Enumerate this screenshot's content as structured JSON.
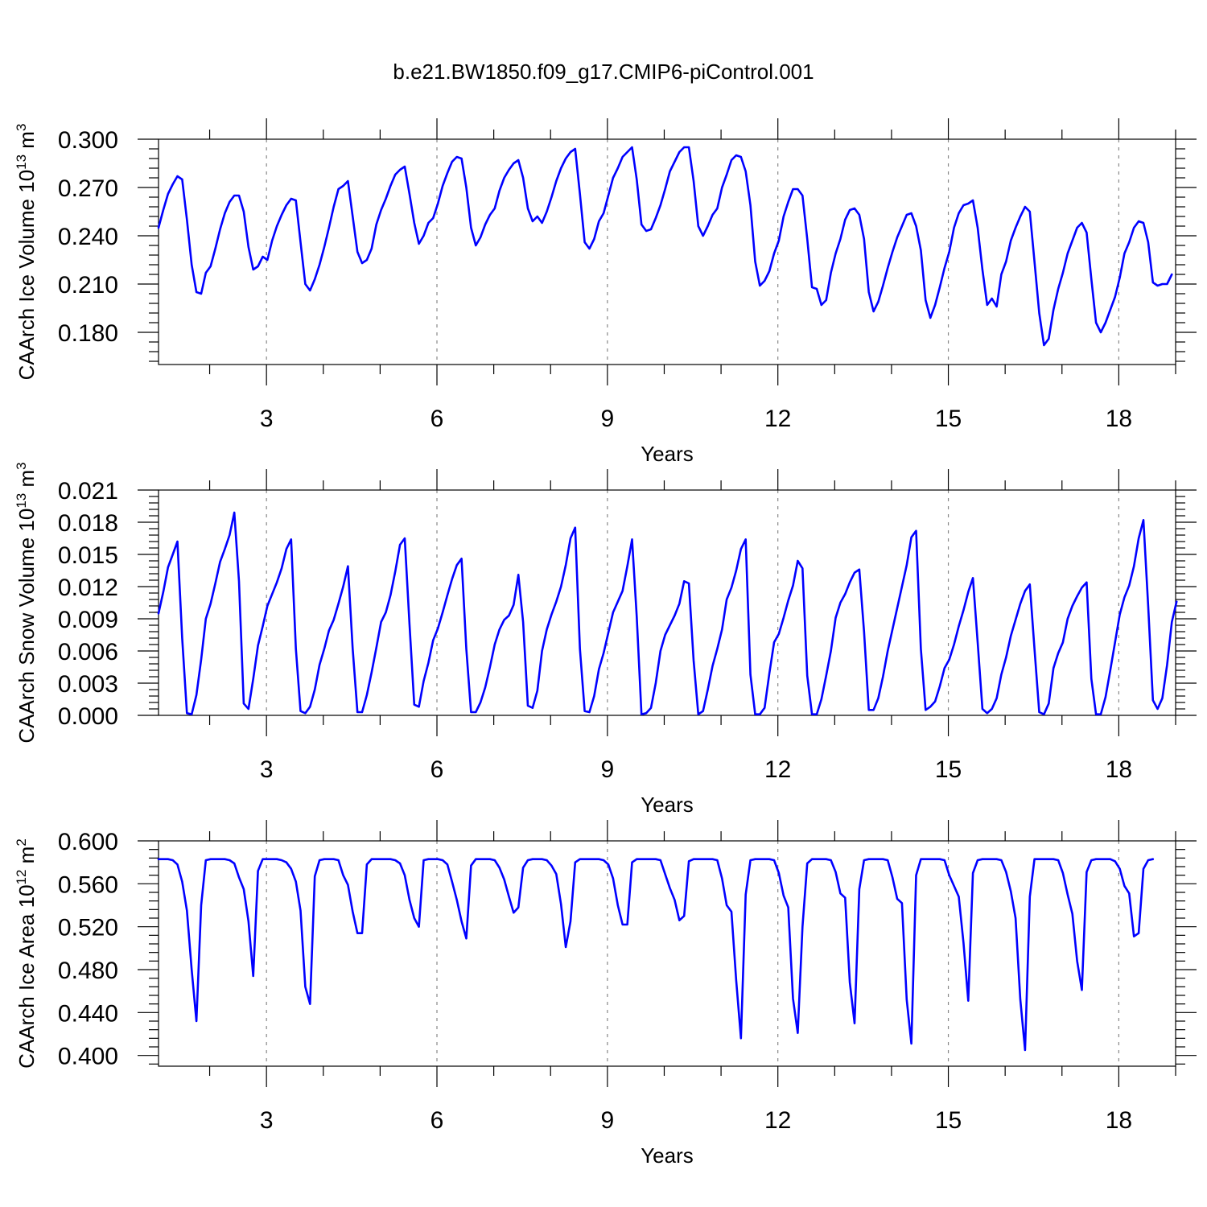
{
  "title": "b.e21.BW1850.f09_g17.CMIP6-piControl.001",
  "chart_data": [
    {
      "type": "line",
      "title": "",
      "xlabel": "Years",
      "ylabel_main": "CAArch Ice Volume 10",
      "ylabel_exp": "13",
      "ylabel_unit": " m",
      "ylabel_unit_exp": "3",
      "xlim": [
        1.1,
        19.0
      ],
      "ylim": [
        0.16,
        0.3
      ],
      "xticks": [
        3,
        6,
        9,
        12,
        15,
        18
      ],
      "xtick_labels": [
        "3",
        "6",
        "9",
        "12",
        "15",
        "18"
      ],
      "yticks": [
        0.18,
        0.21,
        0.24,
        0.27,
        0.3
      ],
      "ytick_labels": [
        "0.180",
        "0.210",
        "0.240",
        "0.270",
        "0.300"
      ],
      "grid": "vertical dashed at major x ticks",
      "color": "#0000ff",
      "x_start": 1.1,
      "x_step": 0.0833333,
      "values": [
        0.245,
        0.256,
        0.266,
        0.272,
        0.277,
        0.275,
        0.25,
        0.222,
        0.205,
        0.204,
        0.217,
        0.221,
        0.232,
        0.244,
        0.254,
        0.261,
        0.265,
        0.265,
        0.255,
        0.233,
        0.219,
        0.221,
        0.227,
        0.225,
        0.237,
        0.246,
        0.253,
        0.259,
        0.263,
        0.262,
        0.236,
        0.21,
        0.206,
        0.213,
        0.222,
        0.233,
        0.245,
        0.258,
        0.269,
        0.271,
        0.274,
        0.252,
        0.23,
        0.223,
        0.225,
        0.232,
        0.247,
        0.256,
        0.263,
        0.271,
        0.278,
        0.281,
        0.283,
        0.266,
        0.248,
        0.235,
        0.24,
        0.248,
        0.251,
        0.26,
        0.271,
        0.279,
        0.286,
        0.289,
        0.288,
        0.27,
        0.245,
        0.234,
        0.239,
        0.247,
        0.253,
        0.257,
        0.268,
        0.276,
        0.281,
        0.285,
        0.287,
        0.276,
        0.257,
        0.249,
        0.252,
        0.248,
        0.255,
        0.264,
        0.274,
        0.282,
        0.288,
        0.292,
        0.294,
        0.266,
        0.236,
        0.232,
        0.238,
        0.249,
        0.254,
        0.265,
        0.276,
        0.282,
        0.289,
        0.292,
        0.295,
        0.275,
        0.247,
        0.243,
        0.244,
        0.251,
        0.259,
        0.269,
        0.28,
        0.286,
        0.292,
        0.295,
        0.295,
        0.274,
        0.246,
        0.24,
        0.246,
        0.253,
        0.257,
        0.27,
        0.278,
        0.287,
        0.29,
        0.289,
        0.28,
        0.259,
        0.224,
        0.209,
        0.212,
        0.218,
        0.229,
        0.237,
        0.252,
        0.261,
        0.269,
        0.269,
        0.265,
        0.238,
        0.208,
        0.207,
        0.197,
        0.2,
        0.217,
        0.229,
        0.238,
        0.25,
        0.256,
        0.257,
        0.253,
        0.238,
        0.205,
        0.193,
        0.199,
        0.209,
        0.22,
        0.23,
        0.239,
        0.246,
        0.253,
        0.254,
        0.246,
        0.231,
        0.2,
        0.189,
        0.197,
        0.208,
        0.22,
        0.23,
        0.245,
        0.254,
        0.259,
        0.26,
        0.262,
        0.245,
        0.219,
        0.197,
        0.201,
        0.196,
        0.216,
        0.224,
        0.237,
        0.245,
        0.252,
        0.258,
        0.255,
        0.224,
        0.192,
        0.172,
        0.176,
        0.194,
        0.207,
        0.217,
        0.229,
        0.237,
        0.245,
        0.248,
        0.242,
        0.213,
        0.186,
        0.18,
        0.186,
        0.194,
        0.202,
        0.214,
        0.229,
        0.236,
        0.245,
        0.249,
        0.248,
        0.236,
        0.211,
        0.209,
        0.21,
        0.21,
        0.216
      ]
    },
    {
      "type": "line",
      "title": "",
      "xlabel": "Years",
      "ylabel_main": "CAArch Snow Volume 10",
      "ylabel_exp": "13",
      "ylabel_unit": " m",
      "ylabel_unit_exp": "3",
      "xlim": [
        1.1,
        19.0
      ],
      "ylim": [
        0.0,
        0.021
      ],
      "xticks": [
        3,
        6,
        9,
        12,
        15,
        18
      ],
      "xtick_labels": [
        "3",
        "6",
        "9",
        "12",
        "15",
        "18"
      ],
      "yticks": [
        0.0,
        0.003,
        0.006,
        0.009,
        0.012,
        0.015,
        0.018,
        0.021
      ],
      "ytick_labels": [
        "0.000",
        "0.003",
        "0.006",
        "0.009",
        "0.012",
        "0.015",
        "0.018",
        "0.021"
      ],
      "grid": "vertical dashed at major x ticks",
      "color": "#0000ff",
      "x_start": 1.1,
      "x_step": 0.0833333,
      "values": [
        0.0095,
        0.0115,
        0.0138,
        0.015,
        0.0162,
        0.0072,
        0.0002,
        0.0001,
        0.0019,
        0.0052,
        0.009,
        0.0104,
        0.0123,
        0.0143,
        0.0155,
        0.0168,
        0.0189,
        0.0125,
        0.0011,
        0.0006,
        0.0034,
        0.0065,
        0.0083,
        0.0102,
        0.0113,
        0.0124,
        0.0137,
        0.0155,
        0.0164,
        0.0062,
        0.0004,
        0.0002,
        0.0008,
        0.0024,
        0.0047,
        0.0062,
        0.0079,
        0.0089,
        0.0104,
        0.012,
        0.0139,
        0.0062,
        0.0003,
        0.0003,
        0.0019,
        0.004,
        0.0063,
        0.0087,
        0.0096,
        0.0112,
        0.0134,
        0.0159,
        0.0165,
        0.0085,
        0.001,
        0.0008,
        0.0032,
        0.0049,
        0.007,
        0.0081,
        0.0096,
        0.0112,
        0.0127,
        0.014,
        0.0146,
        0.0062,
        0.0003,
        0.0003,
        0.0012,
        0.0026,
        0.0045,
        0.0066,
        0.008,
        0.0089,
        0.0093,
        0.0103,
        0.0131,
        0.0087,
        0.0009,
        0.0007,
        0.0023,
        0.006,
        0.008,
        0.0094,
        0.0106,
        0.012,
        0.014,
        0.0165,
        0.0175,
        0.0062,
        0.0004,
        0.0003,
        0.0018,
        0.0043,
        0.0058,
        0.0077,
        0.0096,
        0.0106,
        0.0116,
        0.0139,
        0.0164,
        0.0092,
        0.0001,
        0.0002,
        0.0007,
        0.003,
        0.006,
        0.0075,
        0.0084,
        0.0093,
        0.0104,
        0.0125,
        0.0123,
        0.0051,
        0.0001,
        0.0004,
        0.0024,
        0.0046,
        0.0062,
        0.008,
        0.0108,
        0.0119,
        0.0135,
        0.0155,
        0.0164,
        0.0038,
        0.0001,
        0.0001,
        0.0007,
        0.0039,
        0.0068,
        0.0076,
        0.0091,
        0.0107,
        0.0121,
        0.0144,
        0.0137,
        0.0037,
        0.0001,
        0.0001,
        0.0015,
        0.0037,
        0.006,
        0.0091,
        0.0105,
        0.0113,
        0.0124,
        0.0133,
        0.0136,
        0.0078,
        0.0005,
        0.0005,
        0.0016,
        0.0036,
        0.006,
        0.008,
        0.01,
        0.012,
        0.014,
        0.0166,
        0.0172,
        0.0062,
        0.0005,
        0.0008,
        0.0013,
        0.0027,
        0.0044,
        0.0052,
        0.0066,
        0.0083,
        0.0098,
        0.0115,
        0.0128,
        0.0068,
        0.0006,
        0.0002,
        0.0006,
        0.0016,
        0.0038,
        0.0054,
        0.0074,
        0.0089,
        0.0104,
        0.0116,
        0.0122,
        0.0062,
        0.0003,
        0.0001,
        0.0011,
        0.0044,
        0.0058,
        0.0068,
        0.009,
        0.0102,
        0.0111,
        0.0119,
        0.0124,
        0.0034,
        0.0001,
        0.0001,
        0.0017,
        0.0042,
        0.0068,
        0.0094,
        0.011,
        0.0121,
        0.0139,
        0.0165,
        0.0182,
        0.0102,
        0.0014,
        0.0006,
        0.0016,
        0.0047,
        0.0087,
        0.0106
      ]
    },
    {
      "type": "line",
      "title": "",
      "xlabel": "Years",
      "ylabel_main": "CAArch Ice Area 10",
      "ylabel_exp": "12",
      "ylabel_unit": " m",
      "ylabel_unit_exp": "2",
      "xlim": [
        1.1,
        19.0
      ],
      "ylim": [
        0.39,
        0.6
      ],
      "xticks": [
        3,
        6,
        9,
        12,
        15,
        18
      ],
      "xtick_labels": [
        "3",
        "6",
        "9",
        "12",
        "15",
        "18"
      ],
      "yticks": [
        0.4,
        0.44,
        0.48,
        0.52,
        0.56,
        0.6
      ],
      "ytick_labels": [
        "0.400",
        "0.440",
        "0.480",
        "0.520",
        "0.560",
        "0.600"
      ],
      "grid": "vertical dashed at major x ticks",
      "color": "#0000ff",
      "x_start": 1.1,
      "x_step": 0.0833333,
      "values": [
        0.583,
        0.583,
        0.583,
        0.582,
        0.578,
        0.562,
        0.535,
        0.48,
        0.432,
        0.54,
        0.582,
        0.583,
        0.583,
        0.583,
        0.583,
        0.582,
        0.579,
        0.566,
        0.555,
        0.525,
        0.474,
        0.572,
        0.583,
        0.583,
        0.583,
        0.583,
        0.582,
        0.58,
        0.574,
        0.562,
        0.535,
        0.464,
        0.448,
        0.567,
        0.582,
        0.583,
        0.583,
        0.583,
        0.582,
        0.568,
        0.559,
        0.534,
        0.514,
        0.514,
        0.578,
        0.583,
        0.583,
        0.583,
        0.583,
        0.583,
        0.582,
        0.579,
        0.568,
        0.545,
        0.528,
        0.52,
        0.582,
        0.583,
        0.583,
        0.583,
        0.582,
        0.578,
        0.562,
        0.545,
        0.525,
        0.509,
        0.577,
        0.583,
        0.583,
        0.583,
        0.583,
        0.582,
        0.575,
        0.564,
        0.548,
        0.533,
        0.538,
        0.575,
        0.582,
        0.583,
        0.583,
        0.583,
        0.582,
        0.577,
        0.569,
        0.541,
        0.501,
        0.525,
        0.58,
        0.583,
        0.583,
        0.583,
        0.583,
        0.583,
        0.582,
        0.578,
        0.565,
        0.54,
        0.522,
        0.522,
        0.58,
        0.583,
        0.583,
        0.583,
        0.583,
        0.583,
        0.582,
        0.569,
        0.556,
        0.545,
        0.526,
        0.53,
        0.581,
        0.583,
        0.583,
        0.583,
        0.583,
        0.583,
        0.582,
        0.565,
        0.54,
        0.534,
        0.47,
        0.416,
        0.55,
        0.582,
        0.583,
        0.583,
        0.583,
        0.583,
        0.582,
        0.57,
        0.549,
        0.538,
        0.453,
        0.421,
        0.52,
        0.579,
        0.583,
        0.583,
        0.583,
        0.583,
        0.582,
        0.571,
        0.551,
        0.547,
        0.468,
        0.43,
        0.555,
        0.582,
        0.583,
        0.583,
        0.583,
        0.583,
        0.582,
        0.566,
        0.546,
        0.542,
        0.452,
        0.411,
        0.568,
        0.583,
        0.583,
        0.583,
        0.583,
        0.583,
        0.582,
        0.568,
        0.558,
        0.548,
        0.505,
        0.451,
        0.57,
        0.582,
        0.583,
        0.583,
        0.583,
        0.583,
        0.582,
        0.571,
        0.553,
        0.528,
        0.452,
        0.405,
        0.548,
        0.583,
        0.583,
        0.583,
        0.583,
        0.583,
        0.582,
        0.57,
        0.55,
        0.532,
        0.488,
        0.461,
        0.571,
        0.582,
        0.583,
        0.583,
        0.583,
        0.583,
        0.581,
        0.574,
        0.558,
        0.551,
        0.511,
        0.514,
        0.574,
        0.582,
        0.583
      ]
    }
  ]
}
